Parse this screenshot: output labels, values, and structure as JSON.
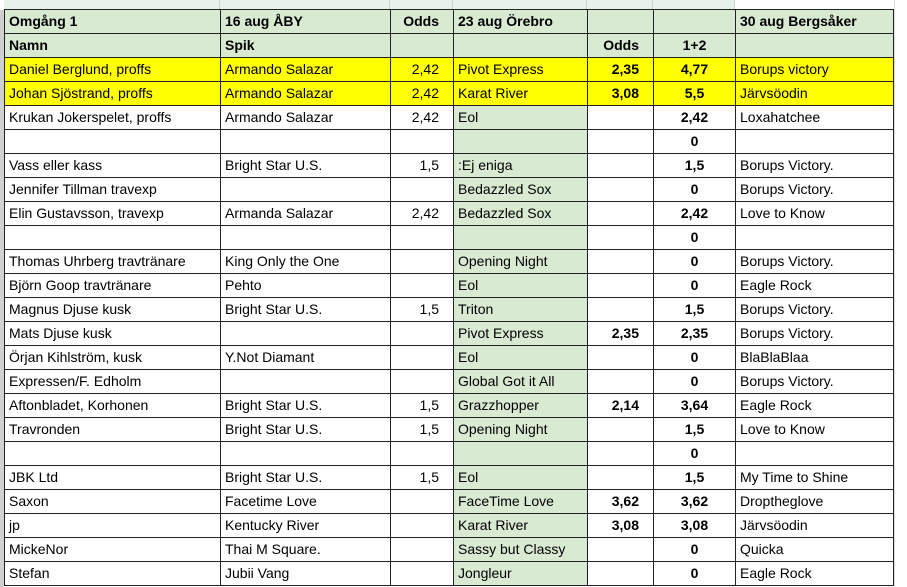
{
  "colors": {
    "header": "#d9ead3",
    "highlight": "#ffff00",
    "orebro_column": "#d9ead3"
  },
  "header": {
    "row1": {
      "a": "Omgång 1",
      "b": "16 aug ÅBY",
      "c": "Odds",
      "d": "23 aug Örebro",
      "e": "",
      "f": "",
      "g": "30 aug Bergsåker"
    },
    "row2": {
      "a": "Namn",
      "b": "Spik",
      "c": "",
      "d": "",
      "e": "Odds",
      "f": "1+2",
      "g": ""
    }
  },
  "rows": [
    {
      "name": "Daniel Berglund, proffs",
      "spik": "Armando Salazar",
      "odds": "2,42",
      "orebro": "Pivot Express",
      "odds2": "2,35",
      "sum": "4,77",
      "bergsaker": "Borups victory",
      "highlight": true
    },
    {
      "name": "Johan Sjöstrand, proffs",
      "spik": "Armando Salazar",
      "odds": "2,42",
      "orebro": "Karat River",
      "odds2": "3,08",
      "sum": "5,5",
      "bergsaker": "Järvsöodin",
      "highlight": true
    },
    {
      "name": "Krukan Jokerspelet, proffs",
      "spik": "Armando Salazar",
      "odds": "2,42",
      "orebro": "Eol",
      "odds2": "",
      "sum": "2,42",
      "bergsaker": "Loxahatchee"
    },
    {
      "name": "",
      "spik": "",
      "odds": "",
      "orebro": "",
      "odds2": "",
      "sum": "0",
      "bergsaker": ""
    },
    {
      "name": "Vass eller kass",
      "spik": "Bright Star U.S.",
      "odds": "1,5",
      "orebro": ":Ej eniga",
      "odds2": "",
      "sum": "1,5",
      "bergsaker": "Borups Victory."
    },
    {
      "name": "Jennifer Tillman travexp",
      "spik": "",
      "odds": "",
      "orebro": "Bedazzled Sox",
      "odds2": "",
      "sum": "0",
      "bergsaker": "Borups Victory."
    },
    {
      "name": "Elin Gustavsson, travexp",
      "spik": "Armanda Salazar",
      "odds": "2,42",
      "orebro": "Bedazzled Sox",
      "odds2": "",
      "sum": "2,42",
      "bergsaker": "Love to Know"
    },
    {
      "name": "",
      "spik": "",
      "odds": "",
      "orebro": "",
      "odds2": "",
      "sum": "0",
      "bergsaker": ""
    },
    {
      "name": "Thomas Uhrberg travtränare",
      "spik": " King Only the One",
      "odds": "",
      "orebro": "Opening Night",
      "odds2": "",
      "sum": "0",
      "bergsaker": "Borups Victory."
    },
    {
      "name": "Björn Goop travtränare",
      "spik": "Pehto",
      "odds": "",
      "orebro": "Eol",
      "odds2": "",
      "sum": "0",
      "bergsaker": "Eagle Rock"
    },
    {
      "name": "Magnus Djuse kusk",
      "spik": "Bright Star U.S.",
      "odds": "1,5",
      "orebro": "Triton",
      "odds2": "",
      "sum": "1,5",
      "bergsaker": "Borups Victory."
    },
    {
      "name": "Mats Djuse kusk",
      "spik": "",
      "odds": "",
      "orebro": "Pivot Express",
      "odds2": "2,35",
      "sum": "2,35",
      "bergsaker": "Borups Victory."
    },
    {
      "name": "Örjan Kihlström, kusk",
      "spik": "Y.Not Diamant",
      "odds": "",
      "orebro": "Eol",
      "odds2": "",
      "sum": "0",
      "bergsaker": "BlaBlaBlaa"
    },
    {
      "name": "Expressen/F. Edholm",
      "spik": "",
      "odds": "",
      "orebro": "Global Got it All",
      "odds2": "",
      "sum": "0",
      "bergsaker": "Borups Victory."
    },
    {
      "name": "Aftonbladet, Korhonen",
      "spik": "Bright Star U.S.",
      "odds": "1,5",
      "orebro": "Grazzhopper",
      "odds2": "2,14",
      "sum": "3,64",
      "bergsaker": "Eagle Rock"
    },
    {
      "name": "Travronden",
      "spik": "Bright Star U.S.",
      "odds": "1,5",
      "orebro": "Opening Night",
      "odds2": "",
      "sum": "1,5",
      "bergsaker": "Love to Know"
    },
    {
      "name": "",
      "spik": "",
      "odds": "",
      "orebro": "",
      "odds2": "",
      "sum": "0",
      "bergsaker": ""
    },
    {
      "name": "JBK Ltd",
      "spik": "Bright Star U.S.",
      "odds": "1,5",
      "orebro": "Eol",
      "odds2": "",
      "sum": "1,5",
      "bergsaker": "My Time to Shine"
    },
    {
      "name": "Saxon",
      "spik": "Facetime Love",
      "odds": "",
      "orebro": "FaceTime Love",
      "odds2": "3,62",
      "sum": "3,62",
      "bergsaker": "Droptheglove"
    },
    {
      "name": "jp",
      "spik": "Kentucky River",
      "odds": "",
      "orebro": "Karat River",
      "odds2": "3,08",
      "sum": "3,08",
      "bergsaker": "Järvsöodin"
    },
    {
      "name": "MickeNor",
      "spik": "Thai M Square.",
      "odds": "",
      "orebro": "Sassy but Classy",
      "odds2": "",
      "sum": "0",
      "bergsaker": "Quicka"
    },
    {
      "name": "Stefan",
      "spik": "Jubii Vang",
      "odds": "",
      "orebro": "Jongleur",
      "odds2": "",
      "sum": "0",
      "bergsaker": "Eagle Rock"
    }
  ]
}
